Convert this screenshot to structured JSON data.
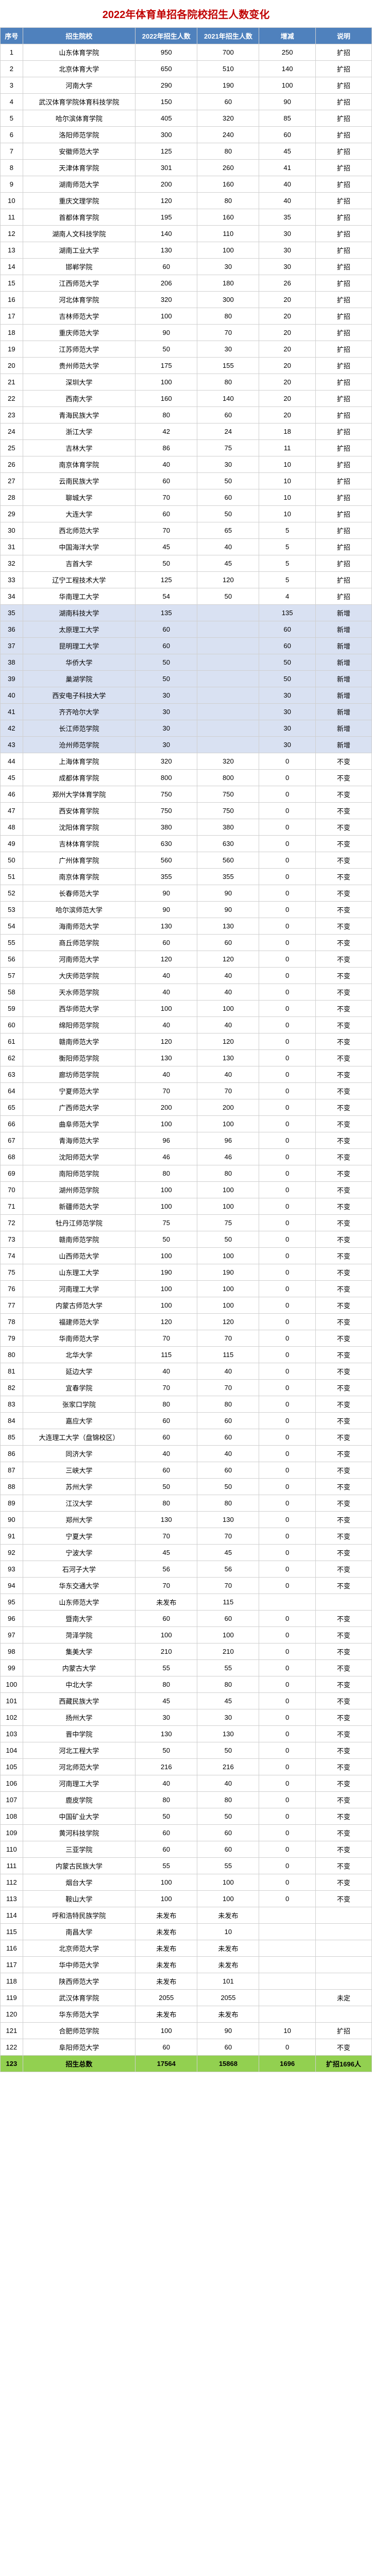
{
  "title": "2022年体育单招各院校招生人数变化",
  "headers": {
    "seq": "序号",
    "name": "招生院校",
    "y2022": "2022年招生人数",
    "y2021": "2021年招生人数",
    "diff": "增减",
    "note": "说明"
  },
  "colors": {
    "title": "#c00000",
    "header_bg": "#4f81bd",
    "header_fg": "#ffffff",
    "border": "#d0d0d0",
    "highlight_bg": "#d9e1f2",
    "total_bg": "#92d050"
  },
  "rows": [
    {
      "seq": "1",
      "name": "山东体育学院",
      "y2022": "950",
      "y2021": "700",
      "diff": "250",
      "note": "扩招",
      "hl": false
    },
    {
      "seq": "2",
      "name": "北京体育大学",
      "y2022": "650",
      "y2021": "510",
      "diff": "140",
      "note": "扩招",
      "hl": false
    },
    {
      "seq": "3",
      "name": "河南大学",
      "y2022": "290",
      "y2021": "190",
      "diff": "100",
      "note": "扩招",
      "hl": false
    },
    {
      "seq": "4",
      "name": "武汉体育学院体育科技学院",
      "y2022": "150",
      "y2021": "60",
      "diff": "90",
      "note": "扩招",
      "hl": false
    },
    {
      "seq": "5",
      "name": "哈尔滨体育学院",
      "y2022": "405",
      "y2021": "320",
      "diff": "85",
      "note": "扩招",
      "hl": false
    },
    {
      "seq": "6",
      "name": "洛阳师范学院",
      "y2022": "300",
      "y2021": "240",
      "diff": "60",
      "note": "扩招",
      "hl": false
    },
    {
      "seq": "7",
      "name": "安徽师范大学",
      "y2022": "125",
      "y2021": "80",
      "diff": "45",
      "note": "扩招",
      "hl": false
    },
    {
      "seq": "8",
      "name": "天津体育学院",
      "y2022": "301",
      "y2021": "260",
      "diff": "41",
      "note": "扩招",
      "hl": false
    },
    {
      "seq": "9",
      "name": "湖南师范大学",
      "y2022": "200",
      "y2021": "160",
      "diff": "40",
      "note": "扩招",
      "hl": false
    },
    {
      "seq": "10",
      "name": "重庆文理学院",
      "y2022": "120",
      "y2021": "80",
      "diff": "40",
      "note": "扩招",
      "hl": false
    },
    {
      "seq": "11",
      "name": "首都体育学院",
      "y2022": "195",
      "y2021": "160",
      "diff": "35",
      "note": "扩招",
      "hl": false
    },
    {
      "seq": "12",
      "name": "湖南人文科技学院",
      "y2022": "140",
      "y2021": "110",
      "diff": "30",
      "note": "扩招",
      "hl": false
    },
    {
      "seq": "13",
      "name": "湖南工业大学",
      "y2022": "130",
      "y2021": "100",
      "diff": "30",
      "note": "扩招",
      "hl": false
    },
    {
      "seq": "14",
      "name": "邯郸学院",
      "y2022": "60",
      "y2021": "30",
      "diff": "30",
      "note": "扩招",
      "hl": false
    },
    {
      "seq": "15",
      "name": "江西师范大学",
      "y2022": "206",
      "y2021": "180",
      "diff": "26",
      "note": "扩招",
      "hl": false
    },
    {
      "seq": "16",
      "name": "河北体育学院",
      "y2022": "320",
      "y2021": "300",
      "diff": "20",
      "note": "扩招",
      "hl": false
    },
    {
      "seq": "17",
      "name": "吉林师范大学",
      "y2022": "100",
      "y2021": "80",
      "diff": "20",
      "note": "扩招",
      "hl": false
    },
    {
      "seq": "18",
      "name": "重庆师范大学",
      "y2022": "90",
      "y2021": "70",
      "diff": "20",
      "note": "扩招",
      "hl": false
    },
    {
      "seq": "19",
      "name": "江苏师范大学",
      "y2022": "50",
      "y2021": "30",
      "diff": "20",
      "note": "扩招",
      "hl": false
    },
    {
      "seq": "20",
      "name": "贵州师范大学",
      "y2022": "175",
      "y2021": "155",
      "diff": "20",
      "note": "扩招",
      "hl": false
    },
    {
      "seq": "21",
      "name": "深圳大学",
      "y2022": "100",
      "y2021": "80",
      "diff": "20",
      "note": "扩招",
      "hl": false
    },
    {
      "seq": "22",
      "name": "西南大学",
      "y2022": "160",
      "y2021": "140",
      "diff": "20",
      "note": "扩招",
      "hl": false
    },
    {
      "seq": "23",
      "name": "青海民族大学",
      "y2022": "80",
      "y2021": "60",
      "diff": "20",
      "note": "扩招",
      "hl": false
    },
    {
      "seq": "24",
      "name": "浙江大学",
      "y2022": "42",
      "y2021": "24",
      "diff": "18",
      "note": "扩招",
      "hl": false
    },
    {
      "seq": "25",
      "name": "吉林大学",
      "y2022": "86",
      "y2021": "75",
      "diff": "11",
      "note": "扩招",
      "hl": false
    },
    {
      "seq": "26",
      "name": "南京体育学院",
      "y2022": "40",
      "y2021": "30",
      "diff": "10",
      "note": "扩招",
      "hl": false
    },
    {
      "seq": "27",
      "name": "云南民族大学",
      "y2022": "60",
      "y2021": "50",
      "diff": "10",
      "note": "扩招",
      "hl": false
    },
    {
      "seq": "28",
      "name": "聊城大学",
      "y2022": "70",
      "y2021": "60",
      "diff": "10",
      "note": "扩招",
      "hl": false
    },
    {
      "seq": "29",
      "name": "大连大学",
      "y2022": "60",
      "y2021": "50",
      "diff": "10",
      "note": "扩招",
      "hl": false
    },
    {
      "seq": "30",
      "name": "西北师范大学",
      "y2022": "70",
      "y2021": "65",
      "diff": "5",
      "note": "扩招",
      "hl": false
    },
    {
      "seq": "31",
      "name": "中国海洋大学",
      "y2022": "45",
      "y2021": "40",
      "diff": "5",
      "note": "扩招",
      "hl": false
    },
    {
      "seq": "32",
      "name": "吉首大学",
      "y2022": "50",
      "y2021": "45",
      "diff": "5",
      "note": "扩招",
      "hl": false
    },
    {
      "seq": "33",
      "name": "辽宁工程技术大学",
      "y2022": "125",
      "y2021": "120",
      "diff": "5",
      "note": "扩招",
      "hl": false
    },
    {
      "seq": "34",
      "name": "华南理工大学",
      "y2022": "54",
      "y2021": "50",
      "diff": "4",
      "note": "扩招",
      "hl": false
    },
    {
      "seq": "35",
      "name": "湖南科技大学",
      "y2022": "135",
      "y2021": "",
      "diff": "135",
      "note": "新增",
      "hl": true
    },
    {
      "seq": "36",
      "name": "太原理工大学",
      "y2022": "60",
      "y2021": "",
      "diff": "60",
      "note": "新增",
      "hl": true
    },
    {
      "seq": "37",
      "name": "昆明理工大学",
      "y2022": "60",
      "y2021": "",
      "diff": "60",
      "note": "新增",
      "hl": true
    },
    {
      "seq": "38",
      "name": "华侨大学",
      "y2022": "50",
      "y2021": "",
      "diff": "50",
      "note": "新增",
      "hl": true
    },
    {
      "seq": "39",
      "name": "巢湖学院",
      "y2022": "50",
      "y2021": "",
      "diff": "50",
      "note": "新增",
      "hl": true
    },
    {
      "seq": "40",
      "name": "西安电子科技大学",
      "y2022": "30",
      "y2021": "",
      "diff": "30",
      "note": "新增",
      "hl": true
    },
    {
      "seq": "41",
      "name": "齐齐哈尔大学",
      "y2022": "30",
      "y2021": "",
      "diff": "30",
      "note": "新增",
      "hl": true
    },
    {
      "seq": "42",
      "name": "长江师范学院",
      "y2022": "30",
      "y2021": "",
      "diff": "30",
      "note": "新增",
      "hl": true
    },
    {
      "seq": "43",
      "name": "沧州师范学院",
      "y2022": "30",
      "y2021": "",
      "diff": "30",
      "note": "新增",
      "hl": true
    },
    {
      "seq": "44",
      "name": "上海体育学院",
      "y2022": "320",
      "y2021": "320",
      "diff": "0",
      "note": "不变",
      "hl": false
    },
    {
      "seq": "45",
      "name": "成都体育学院",
      "y2022": "800",
      "y2021": "800",
      "diff": "0",
      "note": "不变",
      "hl": false
    },
    {
      "seq": "46",
      "name": "郑州大学体育学院",
      "y2022": "750",
      "y2021": "750",
      "diff": "0",
      "note": "不变",
      "hl": false
    },
    {
      "seq": "47",
      "name": "西安体育学院",
      "y2022": "750",
      "y2021": "750",
      "diff": "0",
      "note": "不变",
      "hl": false
    },
    {
      "seq": "48",
      "name": "沈阳体育学院",
      "y2022": "380",
      "y2021": "380",
      "diff": "0",
      "note": "不变",
      "hl": false
    },
    {
      "seq": "49",
      "name": "吉林体育学院",
      "y2022": "630",
      "y2021": "630",
      "diff": "0",
      "note": "不变",
      "hl": false
    },
    {
      "seq": "50",
      "name": "广州体育学院",
      "y2022": "560",
      "y2021": "560",
      "diff": "0",
      "note": "不变",
      "hl": false
    },
    {
      "seq": "51",
      "name": "南京体育学院",
      "y2022": "355",
      "y2021": "355",
      "diff": "0",
      "note": "不变",
      "hl": false
    },
    {
      "seq": "52",
      "name": "长春师范大学",
      "y2022": "90",
      "y2021": "90",
      "diff": "0",
      "note": "不变",
      "hl": false
    },
    {
      "seq": "53",
      "name": "哈尔滨师范大学",
      "y2022": "90",
      "y2021": "90",
      "diff": "0",
      "note": "不变",
      "hl": false
    },
    {
      "seq": "54",
      "name": "海南师范大学",
      "y2022": "130",
      "y2021": "130",
      "diff": "0",
      "note": "不变",
      "hl": false
    },
    {
      "seq": "55",
      "name": "商丘师范学院",
      "y2022": "60",
      "y2021": "60",
      "diff": "0",
      "note": "不变",
      "hl": false
    },
    {
      "seq": "56",
      "name": "河南师范大学",
      "y2022": "120",
      "y2021": "120",
      "diff": "0",
      "note": "不变",
      "hl": false
    },
    {
      "seq": "57",
      "name": "大庆师范学院",
      "y2022": "40",
      "y2021": "40",
      "diff": "0",
      "note": "不变",
      "hl": false
    },
    {
      "seq": "58",
      "name": "天水师范学院",
      "y2022": "40",
      "y2021": "40",
      "diff": "0",
      "note": "不变",
      "hl": false
    },
    {
      "seq": "59",
      "name": "西华师范大学",
      "y2022": "100",
      "y2021": "100",
      "diff": "0",
      "note": "不变",
      "hl": false
    },
    {
      "seq": "60",
      "name": "绵阳师范学院",
      "y2022": "40",
      "y2021": "40",
      "diff": "0",
      "note": "不变",
      "hl": false
    },
    {
      "seq": "61",
      "name": "赣南师范大学",
      "y2022": "120",
      "y2021": "120",
      "diff": "0",
      "note": "不变",
      "hl": false
    },
    {
      "seq": "62",
      "name": "衡阳师范学院",
      "y2022": "130",
      "y2021": "130",
      "diff": "0",
      "note": "不变",
      "hl": false
    },
    {
      "seq": "63",
      "name": "廊坊师范学院",
      "y2022": "40",
      "y2021": "40",
      "diff": "0",
      "note": "不变",
      "hl": false
    },
    {
      "seq": "64",
      "name": "宁夏师范大学",
      "y2022": "70",
      "y2021": "70",
      "diff": "0",
      "note": "不变",
      "hl": false
    },
    {
      "seq": "65",
      "name": "广西师范大学",
      "y2022": "200",
      "y2021": "200",
      "diff": "0",
      "note": "不变",
      "hl": false
    },
    {
      "seq": "66",
      "name": "曲阜师范大学",
      "y2022": "100",
      "y2021": "100",
      "diff": "0",
      "note": "不变",
      "hl": false
    },
    {
      "seq": "67",
      "name": "青海师范大学",
      "y2022": "96",
      "y2021": "96",
      "diff": "0",
      "note": "不变",
      "hl": false
    },
    {
      "seq": "68",
      "name": "沈阳师范大学",
      "y2022": "46",
      "y2021": "46",
      "diff": "0",
      "note": "不变",
      "hl": false
    },
    {
      "seq": "69",
      "name": "南阳师范学院",
      "y2022": "80",
      "y2021": "80",
      "diff": "0",
      "note": "不变",
      "hl": false
    },
    {
      "seq": "70",
      "name": "湖州师范学院",
      "y2022": "100",
      "y2021": "100",
      "diff": "0",
      "note": "不变",
      "hl": false
    },
    {
      "seq": "71",
      "name": "新疆师范大学",
      "y2022": "100",
      "y2021": "100",
      "diff": "0",
      "note": "不变",
      "hl": false
    },
    {
      "seq": "72",
      "name": "牡丹江师范学院",
      "y2022": "75",
      "y2021": "75",
      "diff": "0",
      "note": "不变",
      "hl": false
    },
    {
      "seq": "73",
      "name": "赣南师范学院",
      "y2022": "50",
      "y2021": "50",
      "diff": "0",
      "note": "不变",
      "hl": false
    },
    {
      "seq": "74",
      "name": "山西师范大学",
      "y2022": "100",
      "y2021": "100",
      "diff": "0",
      "note": "不变",
      "hl": false
    },
    {
      "seq": "75",
      "name": "山东理工大学",
      "y2022": "190",
      "y2021": "190",
      "diff": "0",
      "note": "不变",
      "hl": false
    },
    {
      "seq": "76",
      "name": "河南理工大学",
      "y2022": "100",
      "y2021": "100",
      "diff": "0",
      "note": "不变",
      "hl": false
    },
    {
      "seq": "77",
      "name": "内蒙古师范大学",
      "y2022": "100",
      "y2021": "100",
      "diff": "0",
      "note": "不变",
      "hl": false
    },
    {
      "seq": "78",
      "name": "福建师范大学",
      "y2022": "120",
      "y2021": "120",
      "diff": "0",
      "note": "不变",
      "hl": false
    },
    {
      "seq": "79",
      "name": "华南师范大学",
      "y2022": "70",
      "y2021": "70",
      "diff": "0",
      "note": "不变",
      "hl": false
    },
    {
      "seq": "80",
      "name": "北华大学",
      "y2022": "115",
      "y2021": "115",
      "diff": "0",
      "note": "不变",
      "hl": false
    },
    {
      "seq": "81",
      "name": "延边大学",
      "y2022": "40",
      "y2021": "40",
      "diff": "0",
      "note": "不变",
      "hl": false
    },
    {
      "seq": "82",
      "name": "宜春学院",
      "y2022": "70",
      "y2021": "70",
      "diff": "0",
      "note": "不变",
      "hl": false
    },
    {
      "seq": "83",
      "name": "张家口学院",
      "y2022": "80",
      "y2021": "80",
      "diff": "0",
      "note": "不变",
      "hl": false
    },
    {
      "seq": "84",
      "name": "嘉应大学",
      "y2022": "60",
      "y2021": "60",
      "diff": "0",
      "note": "不变",
      "hl": false
    },
    {
      "seq": "85",
      "name": "大连理工大学（盘锦校区）",
      "y2022": "60",
      "y2021": "60",
      "diff": "0",
      "note": "不变",
      "hl": false
    },
    {
      "seq": "86",
      "name": "同济大学",
      "y2022": "40",
      "y2021": "40",
      "diff": "0",
      "note": "不变",
      "hl": false
    },
    {
      "seq": "87",
      "name": "三峡大学",
      "y2022": "60",
      "y2021": "60",
      "diff": "0",
      "note": "不变",
      "hl": false
    },
    {
      "seq": "88",
      "name": "苏州大学",
      "y2022": "50",
      "y2021": "50",
      "diff": "0",
      "note": "不变",
      "hl": false
    },
    {
      "seq": "89",
      "name": "江汉大学",
      "y2022": "80",
      "y2021": "80",
      "diff": "0",
      "note": "不变",
      "hl": false
    },
    {
      "seq": "90",
      "name": "郑州大学",
      "y2022": "130",
      "y2021": "130",
      "diff": "0",
      "note": "不变",
      "hl": false
    },
    {
      "seq": "91",
      "name": "宁夏大学",
      "y2022": "70",
      "y2021": "70",
      "diff": "0",
      "note": "不变",
      "hl": false
    },
    {
      "seq": "92",
      "name": "宁波大学",
      "y2022": "45",
      "y2021": "45",
      "diff": "0",
      "note": "不变",
      "hl": false
    },
    {
      "seq": "93",
      "name": "石河子大学",
      "y2022": "56",
      "y2021": "56",
      "diff": "0",
      "note": "不变",
      "hl": false
    },
    {
      "seq": "94",
      "name": "华东交通大学",
      "y2022": "70",
      "y2021": "70",
      "diff": "0",
      "note": "不变",
      "hl": false
    },
    {
      "seq": "95",
      "name": "山东师范大学",
      "y2022": "未发布",
      "y2021": "115",
      "diff": "",
      "note": "",
      "hl": false
    },
    {
      "seq": "96",
      "name": "暨南大学",
      "y2022": "60",
      "y2021": "60",
      "diff": "0",
      "note": "不变",
      "hl": false
    },
    {
      "seq": "97",
      "name": "菏泽学院",
      "y2022": "100",
      "y2021": "100",
      "diff": "0",
      "note": "不变",
      "hl": false
    },
    {
      "seq": "98",
      "name": "集美大学",
      "y2022": "210",
      "y2021": "210",
      "diff": "0",
      "note": "不变",
      "hl": false
    },
    {
      "seq": "99",
      "name": "内蒙古大学",
      "y2022": "55",
      "y2021": "55",
      "diff": "0",
      "note": "不变",
      "hl": false
    },
    {
      "seq": "100",
      "name": "中北大学",
      "y2022": "80",
      "y2021": "80",
      "diff": "0",
      "note": "不变",
      "hl": false
    },
    {
      "seq": "101",
      "name": "西藏民族大学",
      "y2022": "45",
      "y2021": "45",
      "diff": "0",
      "note": "不变",
      "hl": false
    },
    {
      "seq": "102",
      "name": "扬州大学",
      "y2022": "30",
      "y2021": "30",
      "diff": "0",
      "note": "不变",
      "hl": false
    },
    {
      "seq": "103",
      "name": "晋中学院",
      "y2022": "130",
      "y2021": "130",
      "diff": "0",
      "note": "不变",
      "hl": false
    },
    {
      "seq": "104",
      "name": "河北工程大学",
      "y2022": "50",
      "y2021": "50",
      "diff": "0",
      "note": "不变",
      "hl": false
    },
    {
      "seq": "105",
      "name": "河北师范大学",
      "y2022": "216",
      "y2021": "216",
      "diff": "0",
      "note": "不变",
      "hl": false
    },
    {
      "seq": "106",
      "name": "河南理工大学",
      "y2022": "40",
      "y2021": "40",
      "diff": "0",
      "note": "不变",
      "hl": false
    },
    {
      "seq": "107",
      "name": "鹿皮学院",
      "y2022": "80",
      "y2021": "80",
      "diff": "0",
      "note": "不变",
      "hl": false
    },
    {
      "seq": "108",
      "name": "中国矿业大学",
      "y2022": "50",
      "y2021": "50",
      "diff": "0",
      "note": "不变",
      "hl": false
    },
    {
      "seq": "109",
      "name": "黄河科技学院",
      "y2022": "60",
      "y2021": "60",
      "diff": "0",
      "note": "不变",
      "hl": false
    },
    {
      "seq": "110",
      "name": "三亚学院",
      "y2022": "60",
      "y2021": "60",
      "diff": "0",
      "note": "不变",
      "hl": false
    },
    {
      "seq": "111",
      "name": "内蒙古民族大学",
      "y2022": "55",
      "y2021": "55",
      "diff": "0",
      "note": "不变",
      "hl": false
    },
    {
      "seq": "112",
      "name": "烟台大学",
      "y2022": "100",
      "y2021": "100",
      "diff": "0",
      "note": "不变",
      "hl": false
    },
    {
      "seq": "113",
      "name": "鞍山大学",
      "y2022": "100",
      "y2021": "100",
      "diff": "0",
      "note": "不变",
      "hl": false
    },
    {
      "seq": "114",
      "name": "呼和浩特民族学院",
      "y2022": "未发布",
      "y2021": "未发布",
      "diff": "",
      "note": "",
      "hl": false
    },
    {
      "seq": "115",
      "name": "南昌大学",
      "y2022": "未发布",
      "y2021": "10",
      "diff": "",
      "note": "",
      "hl": false
    },
    {
      "seq": "116",
      "name": "北京师范大学",
      "y2022": "未发布",
      "y2021": "未发布",
      "diff": "",
      "note": "",
      "hl": false
    },
    {
      "seq": "117",
      "name": "华中师范大学",
      "y2022": "未发布",
      "y2021": "未发布",
      "diff": "",
      "note": "",
      "hl": false
    },
    {
      "seq": "118",
      "name": "陕西师范大学",
      "y2022": "未发布",
      "y2021": "101",
      "diff": "",
      "note": "",
      "hl": false
    },
    {
      "seq": "119",
      "name": "武汉体育学院",
      "y2022": "2055",
      "y2021": "2055",
      "diff": "",
      "note": "未定",
      "hl": false
    },
    {
      "seq": "120",
      "name": "华东师范大学",
      "y2022": "未发布",
      "y2021": "未发布",
      "diff": "",
      "note": "",
      "hl": false
    },
    {
      "seq": "121",
      "name": "合肥师范学院",
      "y2022": "100",
      "y2021": "90",
      "diff": "10",
      "note": "扩招",
      "hl": false
    },
    {
      "seq": "122",
      "name": "阜阳师范大学",
      "y2022": "60",
      "y2021": "60",
      "diff": "0",
      "note": "不变",
      "hl": false
    }
  ],
  "total": {
    "seq": "123",
    "name": "招生总数",
    "y2022": "17564",
    "y2021": "15868",
    "diff": "1696",
    "note": "扩招1696人"
  }
}
